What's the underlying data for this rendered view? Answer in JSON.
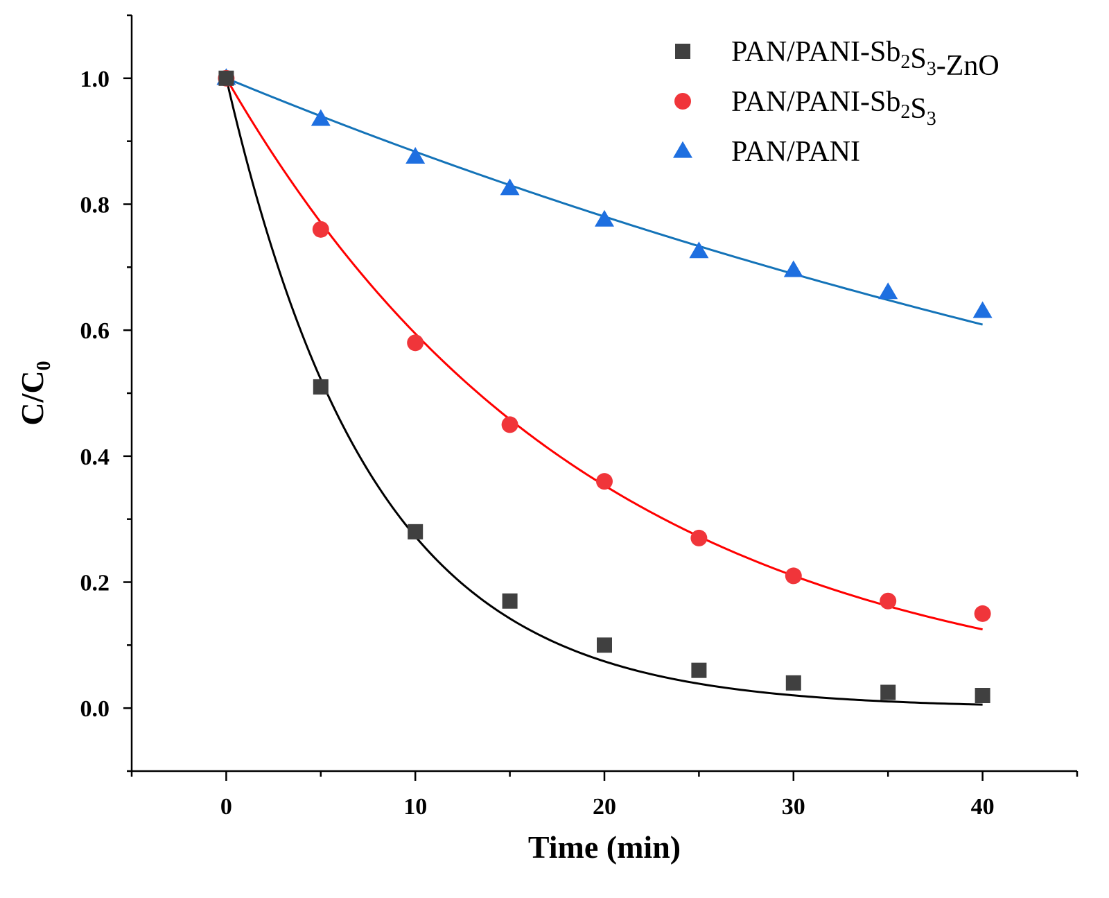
{
  "chart_data": {
    "type": "scatter",
    "title": "",
    "xlabel": "Time (min)",
    "ylabel": {
      "main": "C/C",
      "sub": "0"
    },
    "xlim": [
      -5,
      45
    ],
    "ylim": [
      -0.1,
      1.1
    ],
    "xticks": [
      0,
      10,
      20,
      30,
      40
    ],
    "xtick_labels": [
      "0",
      "10",
      "20",
      "30",
      "40"
    ],
    "yticks": [
      0.0,
      0.2,
      0.4,
      0.6,
      0.8,
      1.0
    ],
    "ytick_labels": [
      "0.0",
      "0.2",
      "0.4",
      "0.6",
      "0.8",
      "1.0"
    ],
    "grid": false,
    "legend_position": "top-right",
    "x": [
      0,
      5,
      10,
      15,
      20,
      25,
      30,
      35,
      40
    ],
    "series": [
      {
        "name": "PAN/PANI-Sb2S3-ZnO",
        "legend_parts": [
          {
            "t": "PAN/PANI-Sb",
            "sub": false
          },
          {
            "t": "2",
            "sub": true
          },
          {
            "t": "S",
            "sub": false
          },
          {
            "t": "3",
            "sub": true
          },
          {
            "t": "-ZnO",
            "sub": false
          }
        ],
        "marker": "square",
        "marker_color": "#404040",
        "line_color": "#000000",
        "values": [
          1.0,
          0.51,
          0.28,
          0.17,
          0.1,
          0.06,
          0.04,
          0.025,
          0.02
        ],
        "fit_rate": 0.13
      },
      {
        "name": "PAN/PANI-Sb2S3",
        "legend_parts": [
          {
            "t": "PAN/PANI-Sb",
            "sub": false
          },
          {
            "t": "2",
            "sub": true
          },
          {
            "t": "S",
            "sub": false
          },
          {
            "t": "3",
            "sub": true
          }
        ],
        "marker": "circle",
        "marker_color": "#f0353a",
        "line_color": "#ff0000",
        "values": [
          1.0,
          0.76,
          0.58,
          0.45,
          0.36,
          0.27,
          0.21,
          0.17,
          0.15
        ],
        "fit_rate": 0.052
      },
      {
        "name": "PAN/PANI",
        "legend_parts": [
          {
            "t": "PAN/PANI",
            "sub": false
          }
        ],
        "marker": "triangle",
        "marker_color": "#1e6fe0",
        "line_color": "#1473b8",
        "values": [
          1.0,
          0.935,
          0.875,
          0.825,
          0.775,
          0.725,
          0.695,
          0.66,
          0.63
        ],
        "fit_rate": 0.0124
      }
    ]
  }
}
